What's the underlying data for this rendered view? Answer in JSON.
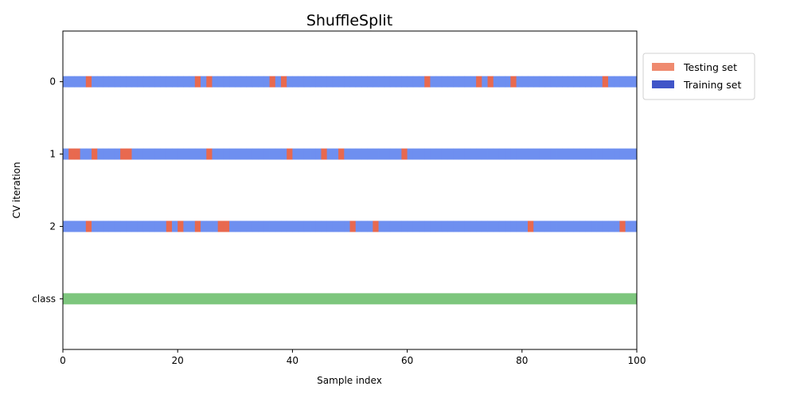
{
  "chart_data": {
    "type": "bar",
    "title": "ShuffleSplit",
    "xlabel": "Sample index",
    "ylabel": "CV iteration",
    "xlim": [
      0,
      100
    ],
    "xticks": [
      "0",
      "20",
      "40",
      "60",
      "80",
      "100"
    ],
    "yticks": [
      "0",
      "1",
      "2",
      "class"
    ],
    "n_samples": 100,
    "grid": false,
    "legend_position": "outside-right",
    "legend": [
      {
        "label": "Testing set",
        "color": "#ef8a6f"
      },
      {
        "label": "Training set",
        "color": "#4055c8"
      }
    ],
    "colors": {
      "testing": "#e8694f",
      "training": "#6e8ff0",
      "class": "#7dc67d"
    },
    "rows": [
      {
        "label": "0",
        "testing_indices": [
          4,
          23,
          25,
          36,
          38,
          63,
          72,
          74,
          78,
          94
        ]
      },
      {
        "label": "1",
        "testing_indices": [
          1,
          2,
          5,
          10,
          11,
          25,
          39,
          45,
          48,
          59
        ]
      },
      {
        "label": "2",
        "testing_indices": [
          4,
          18,
          20,
          23,
          27,
          28,
          50,
          54,
          81,
          97
        ]
      }
    ],
    "class_row": {
      "label": "class",
      "classes": [
        {
          "start": 0,
          "end": 100,
          "color": "#7dc67d"
        }
      ]
    }
  }
}
